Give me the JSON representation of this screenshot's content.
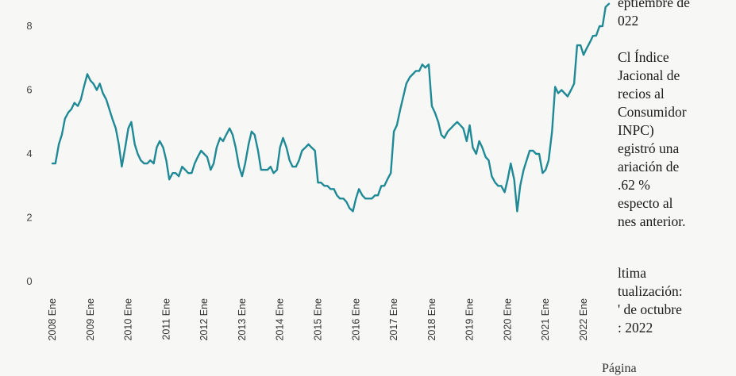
{
  "chart_data": {
    "type": "line",
    "title": "",
    "xlabel": "",
    "ylabel": "",
    "ylim": [
      0,
      8.5
    ],
    "yticks": [
      0,
      2,
      4,
      6,
      8
    ],
    "x_ticks": [
      "2008 Ene",
      "2009 Ene",
      "2010 Ene",
      "2011 Ene",
      "2012 Ene",
      "2013 Ene",
      "2014 Ene",
      "2015 Ene",
      "2016 Ene",
      "2017 Ene",
      "2018 Ene",
      "2019 Ene",
      "2020 Ene",
      "2021 Ene",
      "2022 Ene"
    ],
    "grid": false,
    "color": "#1f8a96",
    "series": [
      {
        "x": [
          2008.0,
          2008.08,
          2008.17,
          2008.25,
          2008.33,
          2008.42,
          2008.5,
          2008.58,
          2008.67,
          2008.75,
          2008.83,
          2008.92,
          2009.0,
          2009.08,
          2009.17,
          2009.25,
          2009.33,
          2009.42,
          2009.5,
          2009.58,
          2009.67,
          2009.75,
          2009.83,
          2009.92,
          2010.0,
          2010.08,
          2010.17,
          2010.25,
          2010.33,
          2010.42,
          2010.5,
          2010.58,
          2010.67,
          2010.75,
          2010.83,
          2010.92,
          2011.0,
          2011.08,
          2011.17,
          2011.25,
          2011.33,
          2011.42,
          2011.5,
          2011.58,
          2011.67,
          2011.75,
          2011.83,
          2011.92,
          2012.0,
          2012.08,
          2012.17,
          2012.25,
          2012.33,
          2012.42,
          2012.5,
          2012.58,
          2012.67,
          2012.75,
          2012.83,
          2012.92,
          2013.0,
          2013.08,
          2013.17,
          2013.25,
          2013.33,
          2013.42,
          2013.5,
          2013.58,
          2013.67,
          2013.75,
          2013.83,
          2013.92,
          2014.0,
          2014.08,
          2014.17,
          2014.25,
          2014.33,
          2014.42,
          2014.5,
          2014.58,
          2014.67,
          2014.75,
          2014.83,
          2014.92,
          2015.0,
          2015.08,
          2015.17,
          2015.25,
          2015.33,
          2015.42,
          2015.5,
          2015.58,
          2015.67,
          2015.75,
          2015.83,
          2015.92,
          2016.0,
          2016.08,
          2016.17,
          2016.25,
          2016.33,
          2016.42,
          2016.5,
          2016.58,
          2016.67,
          2016.75,
          2016.83,
          2016.92,
          2017.0,
          2017.08,
          2017.17,
          2017.25,
          2017.33,
          2017.42,
          2017.5,
          2017.58,
          2017.67,
          2017.75,
          2017.83,
          2017.92,
          2018.0,
          2018.08,
          2018.17,
          2018.25,
          2018.33,
          2018.42,
          2018.5,
          2018.58,
          2018.67,
          2018.75,
          2018.83,
          2018.92,
          2019.0,
          2019.08,
          2019.17,
          2019.25,
          2019.33,
          2019.42,
          2019.5,
          2019.58,
          2019.67,
          2019.75,
          2019.83,
          2019.92,
          2020.0,
          2020.08,
          2020.17,
          2020.25,
          2020.33,
          2020.42,
          2020.5,
          2020.58,
          2020.67,
          2020.75,
          2020.83,
          2020.92,
          2021.0,
          2021.08,
          2021.17,
          2021.25,
          2021.33,
          2021.42,
          2021.5,
          2021.58,
          2021.67,
          2021.75,
          2021.83,
          2021.92,
          2022.0,
          2022.08,
          2022.17,
          2022.25,
          2022.33,
          2022.42,
          2022.5,
          2022.58,
          2022.67
        ],
        "y": [
          3.7,
          3.7,
          4.3,
          4.6,
          5.1,
          5.3,
          5.4,
          5.6,
          5.5,
          5.7,
          6.1,
          6.5,
          6.3,
          6.2,
          6.0,
          6.2,
          5.9,
          5.7,
          5.4,
          5.1,
          4.8,
          4.3,
          3.6,
          4.2,
          4.8,
          5.0,
          4.3,
          4.0,
          3.8,
          3.7,
          3.7,
          3.8,
          3.7,
          4.2,
          4.4,
          4.2,
          3.8,
          3.2,
          3.4,
          3.4,
          3.3,
          3.6,
          3.5,
          3.4,
          3.4,
          3.7,
          3.9,
          4.1,
          4.0,
          3.9,
          3.5,
          3.7,
          4.2,
          4.5,
          4.4,
          4.6,
          4.8,
          4.6,
          4.2,
          3.6,
          3.3,
          3.7,
          4.3,
          4.7,
          4.6,
          4.1,
          3.5,
          3.5,
          3.5,
          3.6,
          3.4,
          3.5,
          4.2,
          4.5,
          4.2,
          3.8,
          3.6,
          3.6,
          3.8,
          4.1,
          4.2,
          4.3,
          4.2,
          4.1,
          3.1,
          3.1,
          3.0,
          3.0,
          2.9,
          2.9,
          2.7,
          2.6,
          2.6,
          2.5,
          2.3,
          2.2,
          2.6,
          2.9,
          2.7,
          2.6,
          2.6,
          2.6,
          2.7,
          2.7,
          3.0,
          3.0,
          3.2,
          3.4,
          4.7,
          4.9,
          5.4,
          5.8,
          6.2,
          6.4,
          6.5,
          6.6,
          6.6,
          6.8,
          6.7,
          6.8,
          5.5,
          5.3,
          5.0,
          4.6,
          4.5,
          4.7,
          4.8,
          4.9,
          5.0,
          4.9,
          4.8,
          4.4,
          4.9,
          4.2,
          4.0,
          4.4,
          4.2,
          3.9,
          3.8,
          3.3,
          3.1,
          3.0,
          3.0,
          2.8,
          3.2,
          3.7,
          3.2,
          2.2,
          3.0,
          3.5,
          3.8,
          4.1,
          4.1,
          4.0,
          4.0,
          3.4,
          3.5,
          3.8,
          4.7,
          6.1,
          5.9,
          6.0,
          5.9,
          5.8,
          6.0,
          6.2,
          7.4,
          7.4,
          7.1,
          7.3,
          7.5,
          7.7,
          7.7,
          8.0,
          8.0,
          8.6,
          8.7
        ]
      }
    ]
  },
  "side_panel": {
    "para1_lines": [
      "eptiembre de",
      "022"
    ],
    "para2_lines": [
      "Cl Índice",
      "Jacional de",
      "recios al",
      "Consumidor",
      "INPC)",
      "egistró una",
      "ariación de",
      ".62 %",
      "especto al",
      "nes anterior."
    ],
    "para3_lines": [
      "ltima",
      "tualización:",
      "' de octubre",
      ": 2022"
    ]
  },
  "bottom_fragment": "Página"
}
